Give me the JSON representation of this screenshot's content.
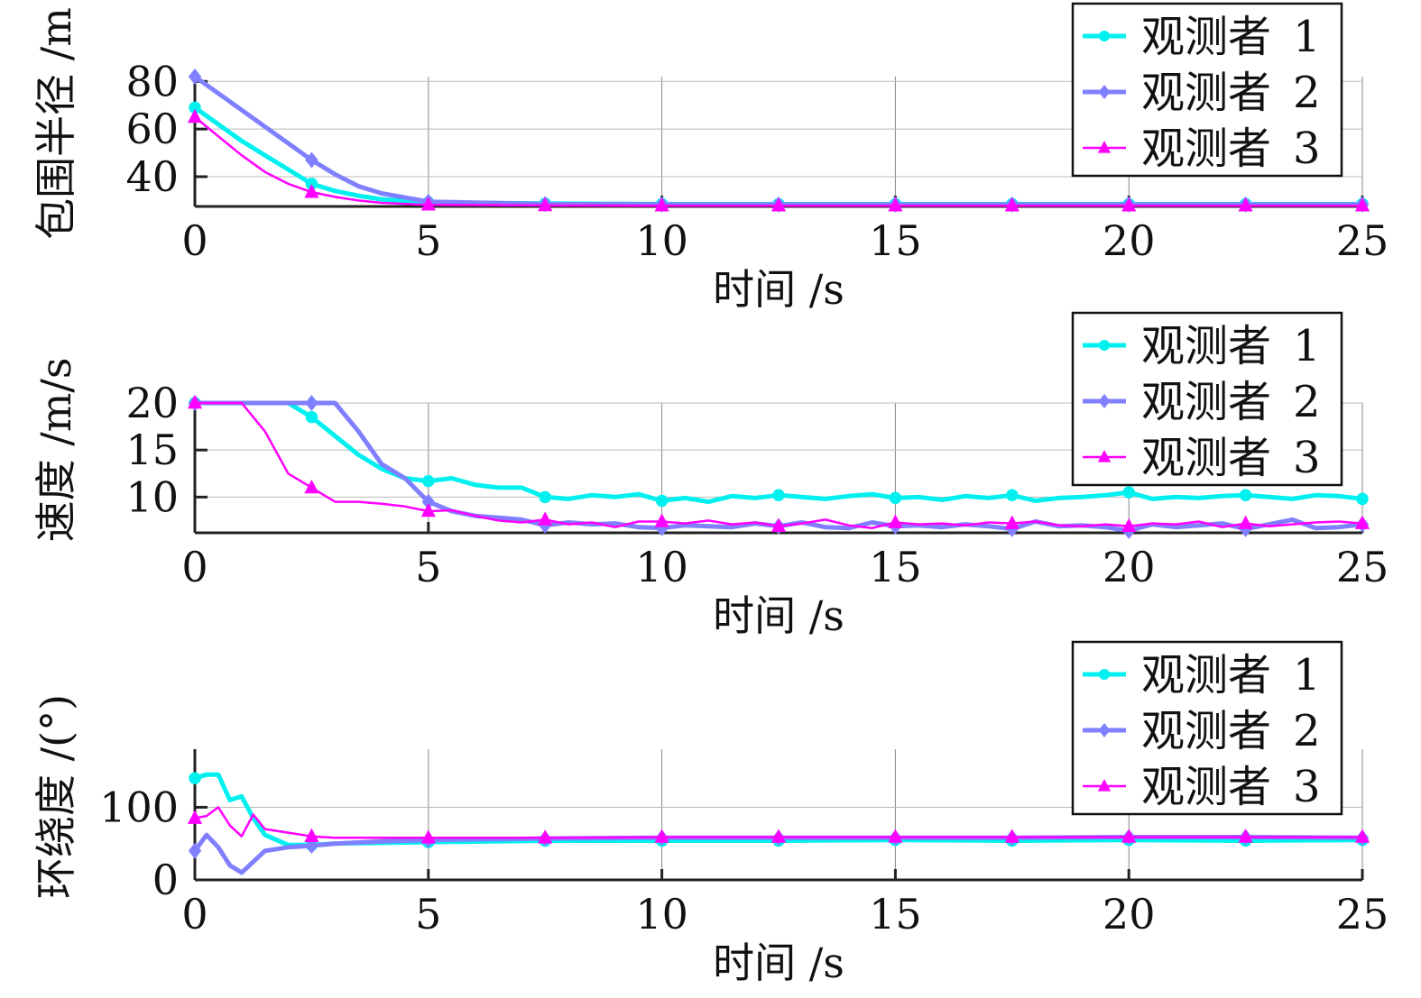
{
  "colors": {
    "observer1": "#00f0f0",
    "observer2": "#7f7fff",
    "observer3": "#ff00ff"
  },
  "chart_data": [
    {
      "type": "line",
      "ylabel": "包围半径 /m",
      "xlabel": "时间 /s",
      "xlim": [
        0,
        25
      ],
      "ylim": [
        27.5,
        82
      ],
      "xticks": [
        0,
        5,
        10,
        15,
        20,
        25
      ],
      "yticks": [
        40,
        60,
        80
      ],
      "grid": true,
      "legend": "top-right",
      "x": [
        0,
        0.5,
        1,
        1.5,
        2,
        2.5,
        3,
        3.5,
        4,
        5,
        7.5,
        10,
        15,
        20,
        25
      ],
      "series": [
        {
          "name": "观测者 1",
          "marker": "circle",
          "values": [
            69,
            62,
            55,
            49,
            43,
            37,
            34,
            32,
            30.5,
            29.2,
            28.7,
            28.5,
            28.5,
            28.5,
            28.5
          ]
        },
        {
          "name": "观测者 2",
          "marker": "diamond",
          "values": [
            82,
            75,
            68,
            61,
            54,
            47,
            41,
            36,
            33,
            29.5,
            28.5,
            28.3,
            28.3,
            28.3,
            28.3
          ]
        },
        {
          "name": "观测者 3",
          "marker": "triangle",
          "values": [
            65,
            57,
            49,
            42,
            37,
            33.5,
            31.5,
            30,
            29,
            28.2,
            27.9,
            27.8,
            27.8,
            27.8,
            27.8
          ]
        }
      ]
    },
    {
      "type": "line",
      "ylabel": "速度 /m/s",
      "xlabel": "时间 /s",
      "xlim": [
        0,
        25
      ],
      "ylim": [
        6.2,
        20
      ],
      "xticks": [
        0,
        5,
        10,
        15,
        20,
        25
      ],
      "yticks": [
        10,
        15,
        20
      ],
      "grid": true,
      "legend": "top-right",
      "x": [
        0,
        0.5,
        1,
        1.5,
        2,
        2.5,
        3,
        3.5,
        4,
        4.5,
        5,
        5.5,
        6,
        6.5,
        7,
        7.5,
        8,
        8.5,
        9,
        9.5,
        10,
        10.5,
        11,
        11.5,
        12,
        12.5,
        13,
        13.5,
        14,
        14.5,
        15,
        15.5,
        16,
        16.5,
        17,
        17.5,
        18,
        18.5,
        19,
        19.5,
        20,
        20.5,
        21,
        21.5,
        22,
        22.5,
        23,
        23.5,
        24,
        24.5,
        25
      ],
      "series": [
        {
          "name": "观测者 1",
          "marker": "circle",
          "values": [
            20,
            20,
            20,
            20,
            20,
            18.5,
            16.5,
            14.5,
            13,
            12,
            11.7,
            12,
            11.3,
            11,
            11,
            10,
            9.8,
            10.2,
            10,
            10.3,
            9.6,
            9.9,
            9.5,
            10.1,
            9.9,
            10.2,
            10,
            9.8,
            10.1,
            10.3,
            9.9,
            10,
            9.7,
            10.1,
            9.9,
            10.2,
            9.6,
            9.9,
            10,
            10.2,
            10.5,
            9.8,
            10,
            9.9,
            10.1,
            10.2,
            10,
            9.8,
            10.2,
            10.1,
            9.8
          ]
        },
        {
          "name": "观测者 2",
          "marker": "diamond",
          "values": [
            20,
            20,
            20,
            20,
            20,
            20,
            20,
            17,
            13.5,
            12,
            9.5,
            8.5,
            8,
            7.8,
            7.6,
            7,
            7.3,
            7.1,
            7.2,
            6.8,
            6.7,
            7,
            6.9,
            6.8,
            7.2,
            6.9,
            7.3,
            6.8,
            6.7,
            7.3,
            6.9,
            7,
            6.8,
            7.1,
            6.9,
            6.6,
            7.4,
            6.9,
            7,
            6.8,
            6.4,
            7.1,
            6.8,
            7,
            7.2,
            6.6,
            7.1,
            7.6,
            6.7,
            6.8,
            7.1
          ]
        },
        {
          "name": "观测者 3",
          "marker": "triangle",
          "values": [
            20,
            20,
            20,
            17,
            12.5,
            11,
            9.5,
            9.5,
            9.3,
            9,
            8.5,
            8.6,
            8,
            7.5,
            7.3,
            7.6,
            7.1,
            7.3,
            6.8,
            7.4,
            7.4,
            7.2,
            7.5,
            7.1,
            7.3,
            6.9,
            7.2,
            7.6,
            7,
            6.7,
            7.3,
            7.1,
            7.2,
            7,
            7.3,
            7.2,
            7.4,
            7,
            6.9,
            7.1,
            6.9,
            7.2,
            7.1,
            7.4,
            6.8,
            7.2,
            6.9,
            7.1,
            7.3,
            7.4,
            7.2
          ]
        }
      ]
    },
    {
      "type": "line",
      "ylabel": "环绕度 /(°)",
      "xlabel": "时间 /s",
      "xlim": [
        0,
        25
      ],
      "ylim": [
        0,
        180
      ],
      "xticks": [
        0,
        5,
        10,
        15,
        20,
        25
      ],
      "yticks": [
        0,
        100
      ],
      "grid": true,
      "legend": "top-right",
      "x": [
        0,
        0.25,
        0.5,
        0.75,
        1,
        1.25,
        1.5,
        2,
        2.5,
        3,
        4,
        5,
        7.5,
        10,
        12.5,
        15,
        17.5,
        20,
        22.5,
        25
      ],
      "series": [
        {
          "name": "观测者 1",
          "marker": "circle",
          "values": [
            140,
            145,
            145,
            110,
            115,
            85,
            62,
            48,
            48,
            50,
            51,
            52,
            54,
            54,
            54,
            55,
            54,
            55,
            54,
            55
          ]
        },
        {
          "name": "观测者 2",
          "marker": "diamond",
          "values": [
            40,
            62,
            45,
            20,
            10,
            25,
            40,
            45,
            47,
            50,
            53,
            55,
            57,
            58,
            58,
            58,
            58,
            59,
            59,
            58
          ]
        },
        {
          "name": "观测者 3",
          "marker": "triangle",
          "values": [
            85,
            88,
            100,
            75,
            60,
            90,
            70,
            65,
            60,
            58,
            58,
            58,
            58,
            59,
            59,
            59,
            59,
            59,
            59,
            59
          ]
        }
      ]
    }
  ]
}
